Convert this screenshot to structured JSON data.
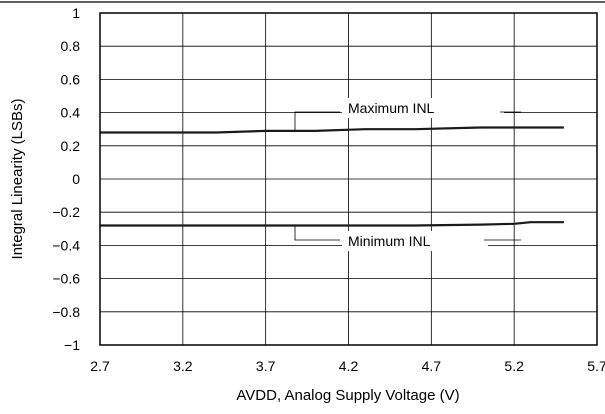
{
  "chart_data": {
    "type": "line",
    "xlabel": "AVDD, Analog Supply Voltage (V)",
    "ylabel": "Integral Linearity (LSBs)",
    "xlim": [
      2.7,
      5.7
    ],
    "ylim": [
      -1,
      1
    ],
    "x_ticks": [
      "2.7",
      "3.2",
      "3.7",
      "4.2",
      "4.7",
      "5.2",
      "5.7"
    ],
    "y_ticks": [
      "1",
      "0.8",
      "0.6",
      "0.4",
      "0.2",
      "0",
      "−0.2",
      "−0.4",
      "−0.6",
      "−0.8",
      "−1"
    ],
    "grid": true,
    "series": [
      {
        "name": "Maximum INL",
        "x": [
          2.7,
          3.0,
          3.4,
          3.7,
          4.0,
          4.3,
          4.6,
          5.0,
          5.3,
          5.5
        ],
        "y": [
          0.28,
          0.28,
          0.28,
          0.29,
          0.29,
          0.3,
          0.3,
          0.31,
          0.31,
          0.31
        ]
      },
      {
        "name": "Minimum INL",
        "x": [
          2.7,
          3.0,
          3.4,
          3.7,
          4.0,
          4.3,
          4.6,
          5.0,
          5.2,
          5.3,
          5.5
        ],
        "y": [
          -0.28,
          -0.28,
          -0.28,
          -0.28,
          -0.28,
          -0.28,
          -0.28,
          -0.275,
          -0.27,
          -0.26,
          -0.26
        ]
      }
    ],
    "annotations": [
      {
        "text": "Maximum INL",
        "series": 0
      },
      {
        "text": "Minimum INL",
        "series": 1
      }
    ],
    "line_color": "#1a1a1a",
    "grid_color": "#000000"
  }
}
